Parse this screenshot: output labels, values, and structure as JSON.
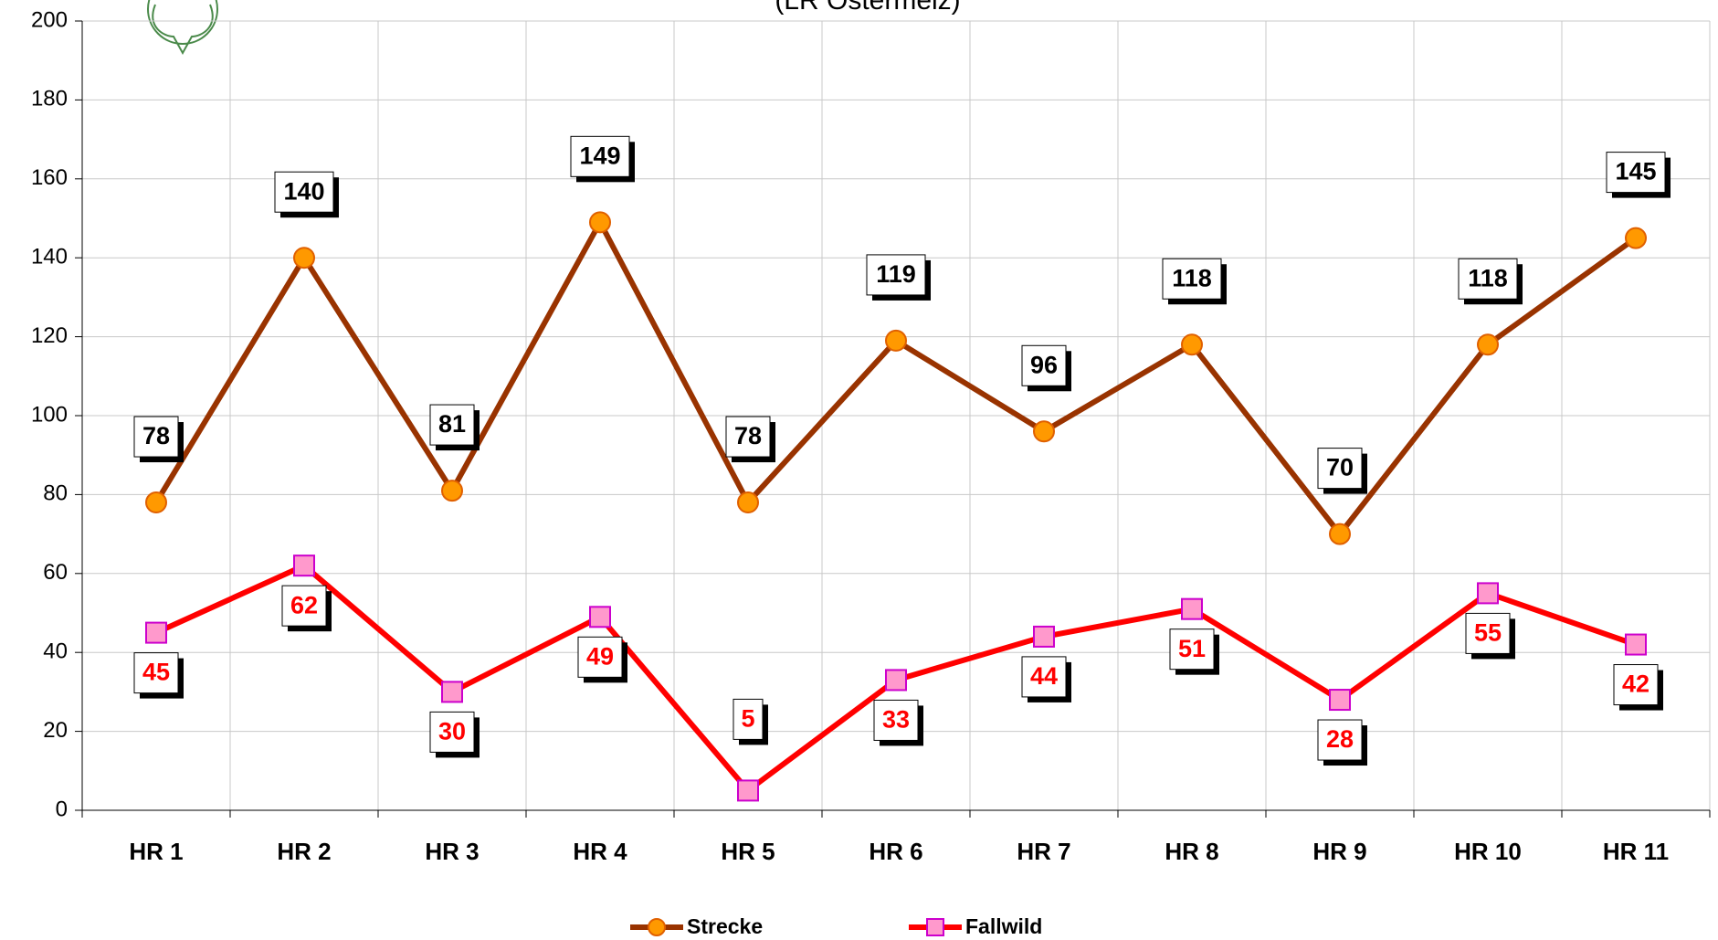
{
  "chart_data": {
    "type": "line",
    "title": "(LR Ostermelz)",
    "categories": [
      "HR 1",
      "HR 2",
      "HR 3",
      "HR 4",
      "HR 5",
      "HR 6",
      "HR 7",
      "HR 8",
      "HR 9",
      "HR 10",
      "HR 11"
    ],
    "series": [
      {
        "name": "Strecke",
        "color": "#993300",
        "marker_color": "#ff9900",
        "values": [
          78,
          140,
          81,
          149,
          78,
          119,
          96,
          118,
          70,
          118,
          145
        ]
      },
      {
        "name": "Fallwild",
        "color": "#ff0000",
        "marker_color": "#ff99cc",
        "values": [
          45,
          62,
          30,
          49,
          5,
          33,
          44,
          51,
          28,
          55,
          42
        ]
      }
    ],
    "ylim": [
      0,
      200
    ],
    "yticks": [
      0,
      20,
      40,
      60,
      80,
      100,
      120,
      140,
      160,
      180,
      200
    ],
    "grid": true,
    "legend": "bottom"
  }
}
